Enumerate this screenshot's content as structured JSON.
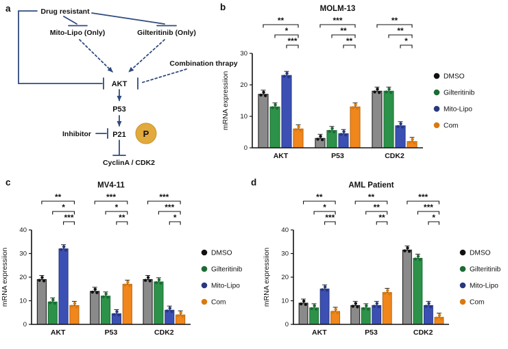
{
  "panels": {
    "a": "a",
    "b": "b",
    "c": "c",
    "d": "d"
  },
  "theme": {
    "background": "#ffffff",
    "line_color": "#2f4a7e",
    "axis_color": "#111111",
    "phospho_fill": "#e2a93d",
    "phospho_stroke": "#c8922c"
  },
  "diagram": {
    "drug_resistant": "Drug resistant",
    "mito_lipo": "Mito-Lipo (Only)",
    "gilteritinib": "Gilteritinib (Only)",
    "combination": "Combination thrapy",
    "akt": "AKT",
    "p53": "P53",
    "p21": "P21",
    "phospho": "P",
    "inhibitor": "Inhibitor",
    "cyclin": "CyclinA / CDK2"
  },
  "chart_data": [
    {
      "panel": "b",
      "type": "bar",
      "title": "MOLM-13",
      "ylabel": "mRNA expressiion",
      "ylim": [
        0,
        30
      ],
      "yticks": [
        0,
        10,
        20,
        30
      ],
      "categories": [
        "AKT",
        "P53",
        "CDK2"
      ],
      "legend_position": "right",
      "grid": false,
      "series": [
        {
          "name": "DMSO",
          "fill": "#8a8a8a",
          "edge": "#111111",
          "dot": "#111111",
          "values": [
            17,
            3,
            18
          ]
        },
        {
          "name": "Gilteritinib",
          "fill": "#2d9249",
          "edge": "#1b6b33",
          "dot": "#1b6b33",
          "values": [
            13,
            5.5,
            18
          ]
        },
        {
          "name": "Mito-Lipo",
          "fill": "#3c50b4",
          "edge": "#27387f",
          "dot": "#27387f",
          "values": [
            23,
            4.5,
            7
          ]
        },
        {
          "name": "Com",
          "fill": "#f0861c",
          "edge": "#b5650d",
          "dot": "#d97a10",
          "values": [
            6,
            13,
            2
          ]
        }
      ],
      "significance": [
        {
          "category": "AKT",
          "brackets": [
            {
              "from": 0,
              "to": 3,
              "label": "**"
            },
            {
              "from": 1,
              "to": 3,
              "label": "*"
            },
            {
              "from": 2,
              "to": 3,
              "label": "***"
            }
          ]
        },
        {
          "category": "P53",
          "brackets": [
            {
              "from": 0,
              "to": 3,
              "label": "***"
            },
            {
              "from": 1,
              "to": 3,
              "label": "**"
            },
            {
              "from": 2,
              "to": 3,
              "label": "**"
            }
          ]
        },
        {
          "category": "CDK2",
          "brackets": [
            {
              "from": 0,
              "to": 3,
              "label": "**"
            },
            {
              "from": 1,
              "to": 3,
              "label": "**"
            },
            {
              "from": 2,
              "to": 3,
              "label": "*"
            }
          ]
        }
      ]
    },
    {
      "panel": "c",
      "type": "bar",
      "title": "MV4-11",
      "ylabel": "mRNA expressiion",
      "ylim": [
        0,
        40
      ],
      "yticks": [
        0,
        10,
        20,
        30,
        40
      ],
      "categories": [
        "AKT",
        "P53",
        "CDK2"
      ],
      "legend_position": "right",
      "grid": false,
      "series": [
        {
          "name": "DMSO",
          "fill": "#8a8a8a",
          "edge": "#111111",
          "dot": "#111111",
          "values": [
            19,
            14,
            19
          ]
        },
        {
          "name": "Gilteritinib",
          "fill": "#2d9249",
          "edge": "#1b6b33",
          "dot": "#1b6b33",
          "values": [
            9.5,
            12,
            18
          ]
        },
        {
          "name": "Mito-Lipo",
          "fill": "#3c50b4",
          "edge": "#27387f",
          "dot": "#27387f",
          "values": [
            32,
            4.5,
            6
          ]
        },
        {
          "name": "Com",
          "fill": "#f0861c",
          "edge": "#b5650d",
          "dot": "#d97a10",
          "values": [
            8,
            17,
            4
          ]
        }
      ],
      "significance": [
        {
          "category": "AKT",
          "brackets": [
            {
              "from": 0,
              "to": 3,
              "label": "**"
            },
            {
              "from": 1,
              "to": 3,
              "label": "*"
            },
            {
              "from": 2,
              "to": 3,
              "label": "***"
            }
          ]
        },
        {
          "category": "P53",
          "brackets": [
            {
              "from": 0,
              "to": 3,
              "label": "***"
            },
            {
              "from": 1,
              "to": 3,
              "label": "*"
            },
            {
              "from": 2,
              "to": 3,
              "label": "**"
            }
          ]
        },
        {
          "category": "CDK2",
          "brackets": [
            {
              "from": 0,
              "to": 3,
              "label": "***"
            },
            {
              "from": 1,
              "to": 3,
              "label": "***"
            },
            {
              "from": 2,
              "to": 3,
              "label": "*"
            }
          ]
        }
      ]
    },
    {
      "panel": "d",
      "type": "bar",
      "title": "AML Patient",
      "ylabel": "mRNA expressiion",
      "ylim": [
        0,
        40
      ],
      "yticks": [
        0,
        10,
        20,
        30,
        40
      ],
      "categories": [
        "AKT",
        "P53",
        "CDK2"
      ],
      "legend_position": "right",
      "grid": false,
      "series": [
        {
          "name": "DMSO",
          "fill": "#8a8a8a",
          "edge": "#111111",
          "dot": "#111111",
          "values": [
            9,
            8,
            31.5
          ]
        },
        {
          "name": "Gilteritinib",
          "fill": "#2d9249",
          "edge": "#1b6b33",
          "dot": "#1b6b33",
          "values": [
            7,
            7,
            28
          ]
        },
        {
          "name": "Mito-Lipo",
          "fill": "#3c50b4",
          "edge": "#27387f",
          "dot": "#27387f",
          "values": [
            15,
            8,
            8
          ]
        },
        {
          "name": "Com",
          "fill": "#f0861c",
          "edge": "#b5650d",
          "dot": "#d97a10",
          "values": [
            5.5,
            13.5,
            3
          ]
        }
      ],
      "significance": [
        {
          "category": "AKT",
          "brackets": [
            {
              "from": 0,
              "to": 3,
              "label": "**"
            },
            {
              "from": 1,
              "to": 3,
              "label": "*"
            },
            {
              "from": 2,
              "to": 3,
              "label": "***"
            }
          ]
        },
        {
          "category": "P53",
          "brackets": [
            {
              "from": 0,
              "to": 3,
              "label": "**"
            },
            {
              "from": 1,
              "to": 3,
              "label": "**"
            },
            {
              "from": 2,
              "to": 3,
              "label": "**"
            }
          ]
        },
        {
          "category": "CDK2",
          "brackets": [
            {
              "from": 0,
              "to": 3,
              "label": "***"
            },
            {
              "from": 1,
              "to": 3,
              "label": "***"
            },
            {
              "from": 2,
              "to": 3,
              "label": "*"
            }
          ]
        }
      ]
    }
  ]
}
